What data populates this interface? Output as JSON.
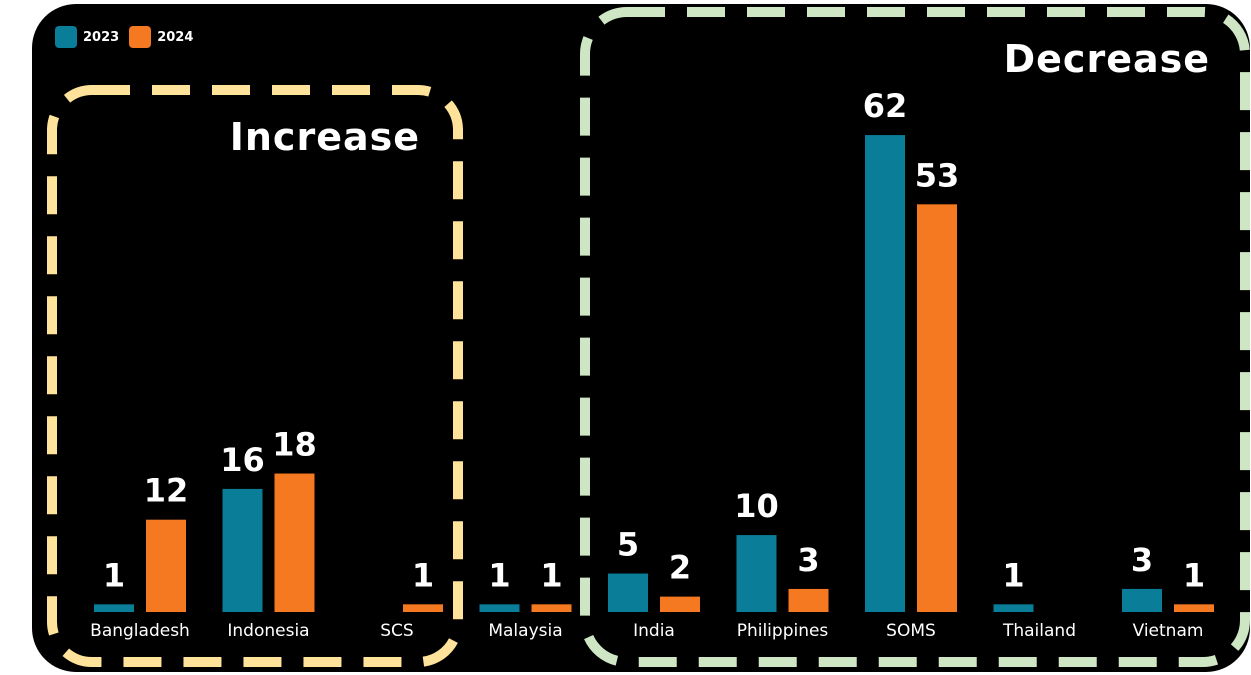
{
  "colors": {
    "series_2023": "#0a7d99",
    "series_2024": "#f47920",
    "increase_box": "#ffe39a",
    "decrease_box": "#cfe6c4",
    "background": "#000000"
  },
  "groups": {
    "increase_label": "Increase",
    "decrease_label": "Decrease"
  },
  "chart_data": {
    "type": "bar",
    "categories": [
      "Bangladesh",
      "Indonesia",
      "SCS",
      "Malaysia",
      "India",
      "Philippines",
      "SOMS",
      "Thailand",
      "Vietnam"
    ],
    "series": [
      {
        "name": "2023",
        "values": [
          1,
          16,
          null,
          1,
          5,
          10,
          62,
          1,
          3
        ],
        "labels": [
          "1",
          "16",
          "",
          "1",
          "5",
          "10",
          "62",
          "1",
          "3"
        ]
      },
      {
        "name": "2024",
        "values": [
          12,
          18,
          1,
          1,
          2,
          3,
          53,
          null,
          1
        ],
        "labels": [
          "12",
          "18",
          "1",
          "1",
          "2",
          "3",
          "53",
          "",
          "1"
        ]
      }
    ],
    "ylim": [
      0,
      65
    ],
    "grid": false,
    "legend_position": "top-left"
  }
}
